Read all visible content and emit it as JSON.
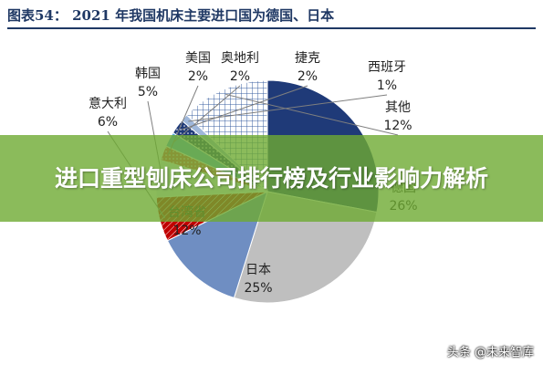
{
  "chart_data": {
    "type": "pie",
    "title": "图表54： 2021 年我国机床主要进口国为德国、日本",
    "slices": [
      {
        "label": "德国",
        "value": 26,
        "display": "26%",
        "color": "#1f3a78",
        "pattern": "solid"
      },
      {
        "label": "日本",
        "value": 25,
        "display": "25%",
        "color": "#bfbfbf",
        "pattern": "solid"
      },
      {
        "label": "台湾省",
        "value": 12,
        "display": "12%",
        "color": "#6f8ec2",
        "pattern": "solid"
      },
      {
        "label": "意大利",
        "value": 6,
        "display": "6%",
        "color": "#c00000",
        "pattern": "hatch"
      },
      {
        "label": "韩国",
        "value": 5,
        "display": "5%",
        "color": "#e9eef7",
        "pattern": "solid"
      },
      {
        "label": "美国",
        "value": 2,
        "display": "2%",
        "color": "#e64b4b",
        "pattern": "dots"
      },
      {
        "label": "奥地利",
        "value": 2,
        "display": "2%",
        "color": "#56a8e0",
        "pattern": "solid"
      },
      {
        "label": "捷克",
        "value": 2,
        "display": "2%",
        "color": "#1f3a78",
        "pattern": "dots"
      },
      {
        "label": "西班牙",
        "value": 1,
        "display": "1%",
        "color": "#9fb7da",
        "pattern": "solid"
      },
      {
        "label": "其他",
        "value": 12,
        "display": "12%",
        "color": "#3a5fa0",
        "pattern": "grid"
      }
    ]
  },
  "banner": {
    "text": "进口重型刨床公司排行榜及行业影响力解析"
  },
  "watermark": {
    "text": "头条 @未来智库"
  }
}
